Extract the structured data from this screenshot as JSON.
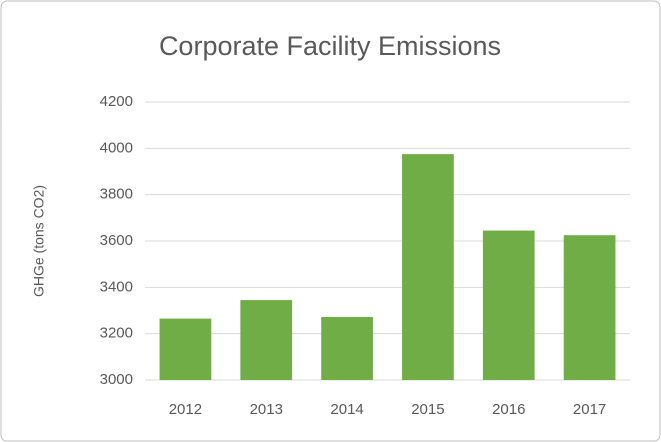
{
  "chart_data": {
    "type": "bar",
    "title": "Corporate Facility Emissions",
    "y_label": "GHGe (tons CO2)",
    "categories": [
      "2012",
      "2013",
      "2014",
      "2015",
      "2016",
      "2017"
    ],
    "values": [
      3265,
      3345,
      3272,
      3975,
      3645,
      3625
    ],
    "color": "#70ad47",
    "ylim": [
      3000,
      4200
    ],
    "yticks": [
      3000,
      3200,
      3400,
      3600,
      3800,
      4000,
      4200
    ],
    "grid": true
  }
}
